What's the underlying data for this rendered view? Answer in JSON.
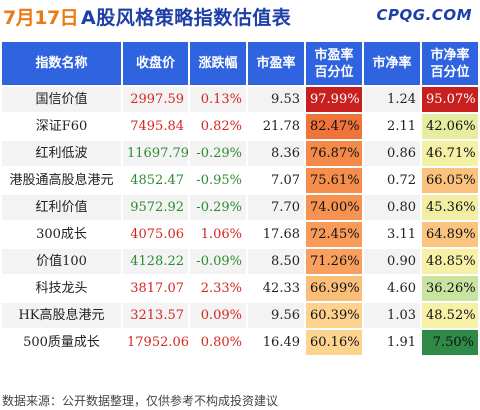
{
  "header": {
    "date": "7月17日",
    "title": "A股风格策略指数估值表",
    "logo": "CPQG.COM"
  },
  "columns": [
    "指数名称",
    "收盘价",
    "涨跌幅",
    "市盈率",
    "市盈率\n百分位",
    "市净率",
    "市净率\n百分位"
  ],
  "rows": [
    {
      "name": "国信价值",
      "close": "2997.59",
      "change": "0.13%",
      "dir": "up",
      "pe": "9.53",
      "pe_pct": "97.99%",
      "pe_color": "#c8201e",
      "pe_text": "#ffffff",
      "pb": "1.24",
      "pb_pct": "95.07%",
      "pb_color": "#c8201e",
      "pb_text": "#ffffff"
    },
    {
      "name": "深证F60",
      "close": "7495.84",
      "change": "0.82%",
      "dir": "up",
      "pe": "21.78",
      "pe_pct": "82.47%",
      "pe_color": "#f0743a",
      "pe_text": "#111111",
      "pb": "2.11",
      "pb_pct": "42.06%",
      "pb_color": "#e6eda0",
      "pb_text": "#111111"
    },
    {
      "name": "红利低波",
      "close": "11697.79",
      "change": "-0.29%",
      "dir": "down",
      "pe": "8.36",
      "pe_pct": "76.87%",
      "pe_color": "#f48a4a",
      "pe_text": "#111111",
      "pb": "0.86",
      "pb_pct": "46.71%",
      "pb_color": "#f4f0a6",
      "pb_text": "#111111"
    },
    {
      "name": "港股通高股息港元",
      "close": "4852.47",
      "change": "-0.95%",
      "dir": "down",
      "pe": "7.07",
      "pe_pct": "75.61%",
      "pe_color": "#f58e4d",
      "pe_text": "#111111",
      "pb": "0.72",
      "pb_pct": "66.05%",
      "pb_color": "#fbc27d",
      "pb_text": "#111111"
    },
    {
      "name": "红利价值",
      "close": "9572.92",
      "change": "-0.29%",
      "dir": "down",
      "pe": "7.70",
      "pe_pct": "74.00%",
      "pe_color": "#f69352",
      "pe_text": "#111111",
      "pb": "0.80",
      "pb_pct": "45.36%",
      "pb_color": "#f2efa5",
      "pb_text": "#111111"
    },
    {
      "name": "300成长",
      "close": "4075.06",
      "change": "1.06%",
      "dir": "up",
      "pe": "17.68",
      "pe_pct": "72.45%",
      "pe_color": "#f89a58",
      "pe_text": "#111111",
      "pb": "3.11",
      "pb_pct": "64.89%",
      "pb_color": "#fbc47f",
      "pb_text": "#111111"
    },
    {
      "name": "价值100",
      "close": "4128.22",
      "change": "-0.09%",
      "dir": "down",
      "pe": "8.50",
      "pe_pct": "71.26%",
      "pe_color": "#f9a05e",
      "pe_text": "#111111",
      "pb": "0.90",
      "pb_pct": "48.85%",
      "pb_color": "#f7f1a8",
      "pb_text": "#111111"
    },
    {
      "name": "科技龙头",
      "close": "3817.07",
      "change": "2.33%",
      "dir": "up",
      "pe": "42.33",
      "pe_pct": "66.99%",
      "pe_color": "#fbbe78",
      "pe_text": "#111111",
      "pb": "4.60",
      "pb_pct": "36.26%",
      "pb_color": "#c9e3a0",
      "pb_text": "#111111"
    },
    {
      "name": "HK高股息港元",
      "close": "3213.57",
      "change": "0.09%",
      "dir": "up",
      "pe": "9.56",
      "pe_pct": "60.39%",
      "pe_color": "#fcd28e",
      "pe_text": "#111111",
      "pb": "1.03",
      "pb_pct": "48.52%",
      "pb_color": "#f7f1a8",
      "pb_text": "#111111"
    },
    {
      "name": "500质量成长",
      "close": "17952.06",
      "change": "0.80%",
      "dir": "up",
      "pe": "16.49",
      "pe_pct": "60.16%",
      "pe_color": "#fcd490",
      "pe_text": "#111111",
      "pb": "1.91",
      "pb_pct": "7.50%",
      "pb_color": "#2e8a46",
      "pb_text": "#111111"
    }
  ],
  "colors": {
    "header_bg": "#2f63e0",
    "up": "#d7261f",
    "down": "#2e8b2e"
  },
  "footer": "数据来源：公开数据整理，仅供参考不构成投资建议"
}
